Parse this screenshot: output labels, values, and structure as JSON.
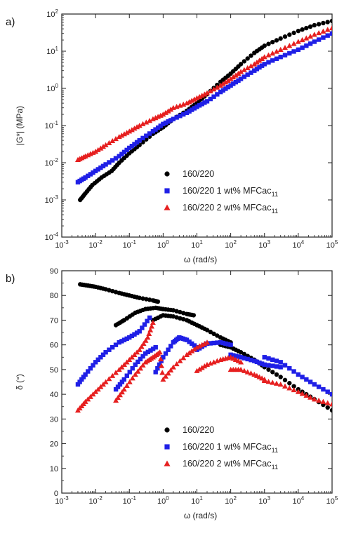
{
  "chart_data": [
    {
      "panel_label": "a)",
      "type": "scatter",
      "xlabel": "ω (rad/s)",
      "ylabel": "|G*| (MPa)",
      "xscale": "log",
      "yscale": "log",
      "xlim": [
        0.001,
        100000
      ],
      "ylim": [
        0.0001,
        100
      ],
      "xticks": [
        0.001,
        0.01,
        0.1,
        1,
        10,
        100,
        1000,
        10000,
        100000
      ],
      "xtick_labels": [
        [
          "10",
          "-3"
        ],
        [
          "10",
          "-2"
        ],
        [
          "10",
          "-1"
        ],
        [
          "10",
          "0"
        ],
        [
          "10",
          "1"
        ],
        [
          "10",
          "2"
        ],
        [
          "10",
          "3"
        ],
        [
          "10",
          "4"
        ],
        [
          "10",
          "5"
        ]
      ],
      "yticks": [
        0.0001,
        0.001,
        0.01,
        0.1,
        1,
        10,
        100
      ],
      "ytick_labels": [
        [
          "10",
          "-4"
        ],
        [
          "10",
          "-3"
        ],
        [
          "10",
          "-2"
        ],
        [
          "10",
          "-1"
        ],
        [
          "10",
          "0"
        ],
        [
          "10",
          "1"
        ],
        [
          "10",
          "2"
        ]
      ],
      "legend_position": "bottom-right",
      "series": [
        {
          "name": "160/220",
          "legend_main": "160/220",
          "legend_sub": "",
          "color": "#000000",
          "marker": "circle",
          "points": [
            [
              0.0035,
              0.001
            ],
            [
              0.005,
              0.0015
            ],
            [
              0.008,
              0.0025
            ],
            [
              0.015,
              0.004
            ],
            [
              0.03,
              0.006
            ],
            [
              0.05,
              0.01
            ],
            [
              0.1,
              0.018
            ],
            [
              0.2,
              0.03
            ],
            [
              0.5,
              0.06
            ],
            [
              1,
              0.09
            ],
            [
              2,
              0.15
            ],
            [
              5,
              0.25
            ],
            [
              10,
              0.4
            ],
            [
              20,
              0.7
            ],
            [
              50,
              1.5
            ],
            [
              100,
              2.5
            ],
            [
              200,
              4.5
            ],
            [
              500,
              9
            ],
            [
              1000,
              14
            ],
            [
              3000,
              22
            ],
            [
              10000,
              35
            ],
            [
              30000,
              50
            ],
            [
              100000,
              65
            ]
          ]
        },
        {
          "name": "160/220 1 wt% MFCac11",
          "legend_main": "160/220 1 wt% MFCac",
          "legend_sub": "11",
          "color": "#1f1fe6",
          "marker": "square",
          "points": [
            [
              0.003,
              0.003
            ],
            [
              0.005,
              0.004
            ],
            [
              0.01,
              0.006
            ],
            [
              0.02,
              0.009
            ],
            [
              0.05,
              0.015
            ],
            [
              0.1,
              0.025
            ],
            [
              0.2,
              0.04
            ],
            [
              0.5,
              0.07
            ],
            [
              1,
              0.11
            ],
            [
              2,
              0.15
            ],
            [
              5,
              0.22
            ],
            [
              10,
              0.32
            ],
            [
              20,
              0.45
            ],
            [
              50,
              0.8
            ],
            [
              100,
              1.2
            ],
            [
              200,
              1.8
            ],
            [
              500,
              3
            ],
            [
              1000,
              4.5
            ],
            [
              3000,
              7
            ],
            [
              10000,
              11
            ],
            [
              30000,
              18
            ],
            [
              100000,
              30
            ]
          ]
        },
        {
          "name": "160/220 2 wt% MFCac11",
          "legend_main": "160/220 2 wt% MFCac",
          "legend_sub": "11",
          "color": "#e61f1f",
          "marker": "triangle",
          "points": [
            [
              0.003,
              0.012
            ],
            [
              0.005,
              0.015
            ],
            [
              0.01,
              0.02
            ],
            [
              0.02,
              0.03
            ],
            [
              0.05,
              0.05
            ],
            [
              0.1,
              0.07
            ],
            [
              0.2,
              0.1
            ],
            [
              0.5,
              0.15
            ],
            [
              1,
              0.2
            ],
            [
              2,
              0.3
            ],
            [
              5,
              0.4
            ],
            [
              10,
              0.55
            ],
            [
              20,
              0.75
            ],
            [
              50,
              1.2
            ],
            [
              100,
              1.8
            ],
            [
              200,
              2.8
            ],
            [
              500,
              4.5
            ],
            [
              1000,
              7
            ],
            [
              3000,
              11
            ],
            [
              10000,
              18
            ],
            [
              30000,
              28
            ],
            [
              100000,
              42
            ]
          ]
        }
      ]
    },
    {
      "panel_label": "b)",
      "type": "scatter",
      "xlabel": "ω (rad/s)",
      "ylabel": "δ (°)",
      "xscale": "log",
      "yscale": "linear",
      "xlim": [
        0.001,
        100000
      ],
      "ylim": [
        0,
        90
      ],
      "xticks": [
        0.001,
        0.01,
        0.1,
        1,
        10,
        100,
        1000,
        10000,
        100000
      ],
      "xtick_labels": [
        [
          "10",
          "-3"
        ],
        [
          "10",
          "-2"
        ],
        [
          "10",
          "-1"
        ],
        [
          "10",
          "0"
        ],
        [
          "10",
          "1"
        ],
        [
          "10",
          "2"
        ],
        [
          "10",
          "3"
        ],
        [
          "10",
          "4"
        ],
        [
          "10",
          "5"
        ]
      ],
      "yticks": [
        0,
        10,
        20,
        30,
        40,
        50,
        60,
        70,
        80,
        90
      ],
      "ytick_labels": [
        [
          "0",
          ""
        ],
        [
          "10",
          ""
        ],
        [
          "20",
          ""
        ],
        [
          "30",
          ""
        ],
        [
          "40",
          ""
        ],
        [
          "50",
          ""
        ],
        [
          "60",
          ""
        ],
        [
          "70",
          ""
        ],
        [
          "80",
          ""
        ],
        [
          "90",
          ""
        ]
      ],
      "legend_position": "bottom-right",
      "series": [
        {
          "name": "160/220",
          "legend_main": "160/220",
          "legend_sub": "",
          "color": "#000000",
          "marker": "circle",
          "points": [
            [
              0.0035,
              84.5
            ],
            [
              0.006,
              84
            ],
            [
              0.01,
              83.5
            ],
            [
              0.02,
              82.5
            ],
            [
              0.05,
              81
            ],
            [
              0.1,
              80
            ],
            [
              0.2,
              79
            ],
            [
              0.5,
              78
            ],
            [
              0.7,
              77.5
            ],
            [
              0.04,
              68
            ],
            [
              0.07,
              70
            ],
            [
              0.15,
              73
            ],
            [
              0.3,
              74.5
            ],
            [
              0.6,
              75
            ],
            [
              1,
              74.5
            ],
            [
              2,
              74
            ],
            [
              5,
              72.5
            ],
            [
              8,
              72
            ],
            [
              0.5,
              70
            ],
            [
              1,
              72
            ],
            [
              2,
              71.5
            ],
            [
              5,
              70
            ],
            [
              10,
              68
            ],
            [
              20,
              66
            ],
            [
              50,
              63
            ],
            [
              100,
              61
            ],
            [
              50,
              60
            ],
            [
              100,
              59
            ],
            [
              200,
              57
            ],
            [
              500,
              54
            ],
            [
              1000,
              51
            ],
            [
              3000,
              47
            ],
            [
              10000,
              42
            ],
            [
              30000,
              38
            ],
            [
              100000,
              33.5
            ]
          ]
        },
        {
          "name": "160/220 1 wt% MFCac11",
          "legend_main": "160/220 1 wt% MFCac",
          "legend_sub": "11",
          "color": "#1f1fe6",
          "marker": "square",
          "points": [
            [
              0.003,
              44
            ],
            [
              0.005,
              48
            ],
            [
              0.01,
              53
            ],
            [
              0.02,
              57
            ],
            [
              0.05,
              61
            ],
            [
              0.1,
              63
            ],
            [
              0.2,
              65.5
            ],
            [
              0.4,
              71
            ],
            [
              0.04,
              42
            ],
            [
              0.07,
              46
            ],
            [
              0.15,
              52
            ],
            [
              0.3,
              56.5
            ],
            [
              0.6,
              59
            ],
            [
              0.6,
              49
            ],
            [
              1,
              55
            ],
            [
              2,
              61
            ],
            [
              3,
              63
            ],
            [
              5,
              62
            ],
            [
              10,
              59
            ],
            [
              10,
              58
            ],
            [
              20,
              60.5
            ],
            [
              50,
              61
            ],
            [
              100,
              60
            ],
            [
              100,
              56
            ],
            [
              200,
              55
            ],
            [
              500,
              53.5
            ],
            [
              1000,
              52
            ],
            [
              3000,
              51
            ],
            [
              1000,
              55
            ],
            [
              3000,
              53
            ],
            [
              10000,
              48
            ],
            [
              30000,
              44
            ],
            [
              100000,
              40
            ]
          ]
        },
        {
          "name": "160/220 2 wt% MFCac11",
          "legend_main": "160/220 2 wt% MFCac",
          "legend_sub": "11",
          "color": "#e61f1f",
          "marker": "triangle",
          "points": [
            [
              0.003,
              33.5
            ],
            [
              0.005,
              37
            ],
            [
              0.01,
              41
            ],
            [
              0.02,
              45
            ],
            [
              0.05,
              50
            ],
            [
              0.1,
              54
            ],
            [
              0.2,
              58
            ],
            [
              0.35,
              63
            ],
            [
              0.5,
              69
            ],
            [
              0.04,
              37.5
            ],
            [
              0.07,
              42
            ],
            [
              0.15,
              48
            ],
            [
              0.3,
              53
            ],
            [
              0.5,
              55
            ],
            [
              0.8,
              57
            ],
            [
              1,
              46
            ],
            [
              2,
              51
            ],
            [
              5,
              56
            ],
            [
              10,
              59
            ],
            [
              20,
              61
            ],
            [
              10,
              49.5
            ],
            [
              20,
              52
            ],
            [
              50,
              54
            ],
            [
              100,
              55
            ],
            [
              200,
              53
            ],
            [
              100,
              50
            ],
            [
              200,
              50
            ],
            [
              500,
              48
            ],
            [
              1000,
              46
            ],
            [
              1000,
              45.5
            ],
            [
              3000,
              44
            ],
            [
              10000,
              41
            ],
            [
              30000,
              38
            ],
            [
              100000,
              36
            ]
          ]
        }
      ]
    }
  ]
}
